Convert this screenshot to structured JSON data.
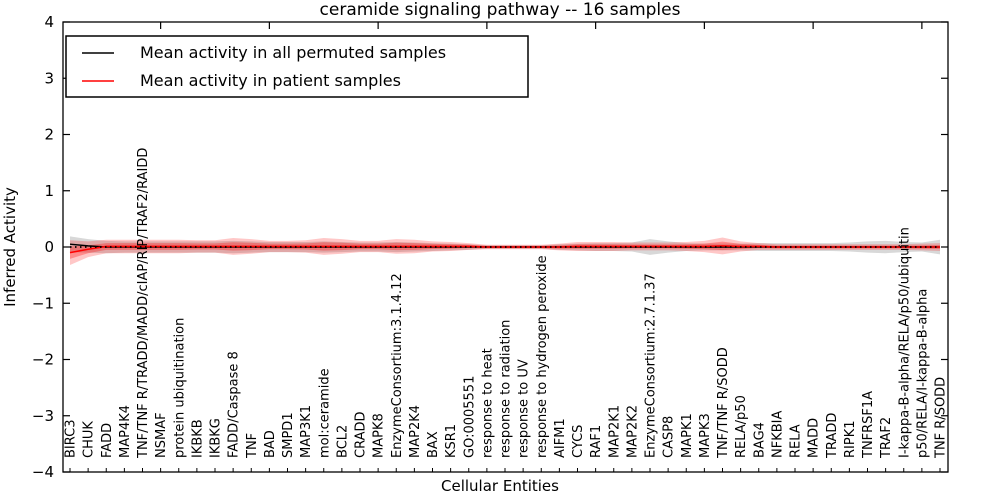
{
  "chart_data": {
    "type": "line",
    "title": "ceramide signaling pathway -- 16 samples",
    "xlabel": "Cellular Entities",
    "ylabel": "Inferred Activity",
    "ylim": [
      -4,
      4
    ],
    "yticks": [
      4,
      3,
      2,
      1,
      0,
      -1,
      -2,
      -3,
      -4
    ],
    "grid": false,
    "legend_position": "upper left",
    "top_tick_indices": [
      5,
      11,
      17,
      23,
      29,
      35,
      41,
      47
    ],
    "categories": [
      "BIRC3",
      "CHUK",
      "FADD",
      "MAP4K4",
      "TNF/TNF R/TRADD/MADD/cIAP/RIP/TRAF2/RAIDD",
      "NSMAF",
      "protein ubiquitination",
      "IKBKB",
      "IKBKG",
      "FADD/Caspase 8",
      "TNF",
      "BAD",
      "SMPD1",
      "MAP3K1",
      "mol:ceramide",
      "BCL2",
      "CRADD",
      "MAPK8",
      "EnzymeConsortium:3.1.4.12",
      "MAP2K4",
      "BAX",
      "KSR1",
      "GO:0005551",
      "response to heat",
      "response to radiation",
      "response to UV",
      "response to hydrogen peroxide",
      "AIFM1",
      "CYCS",
      "RAF1",
      "MAP2K1",
      "MAP2K2",
      "EnzymeConsortium:2.7.1.37",
      "CASP8",
      "MAPK1",
      "MAPK3",
      "TNF/TNF R/SODD",
      "RELA/p50",
      "BAG4",
      "NFKBIA",
      "RELA",
      "MADD",
      "TRADD",
      "RIPK1",
      "TNFRSF1A",
      "TRAF2",
      "I-kappa-B-alpha/RELA/p50/ubiquitin",
      "p50/RELA/I-kappa-B-alpha",
      "TNF R/SODD"
    ],
    "series": [
      {
        "name": "Mean activity in all permuted samples",
        "color": "#000000",
        "band_color": "#999999",
        "values": [
          0.05,
          0.02,
          0,
          0,
          0,
          0,
          0,
          0,
          0,
          0,
          0,
          0,
          0,
          0,
          0,
          0,
          0,
          0,
          0,
          0,
          0,
          0,
          0,
          0,
          0,
          0,
          0,
          0,
          0,
          0,
          0,
          0,
          0,
          0,
          0,
          0,
          0,
          0,
          0,
          0,
          0,
          0,
          0,
          0,
          0,
          0,
          0,
          0,
          0
        ],
        "band": [
          0.14,
          0.12,
          0.11,
          0.1,
          0.1,
          0.1,
          0.1,
          0.1,
          0.1,
          0.11,
          0.1,
          0.09,
          0.09,
          0.09,
          0.1,
          0.09,
          0.08,
          0.08,
          0.09,
          0.08,
          0.07,
          0.06,
          0.05,
          0.03,
          0.03,
          0.03,
          0.03,
          0.05,
          0.06,
          0.07,
          0.07,
          0.08,
          0.14,
          0.1,
          0.07,
          0.06,
          0.06,
          0.06,
          0.07,
          0.07,
          0.07,
          0.07,
          0.07,
          0.08,
          0.1,
          0.11,
          0.09,
          0.08,
          0.13
        ]
      },
      {
        "name": "Mean activity in patient samples",
        "color": "#ff0000",
        "band_color": "#ff0000",
        "values": [
          -0.1,
          -0.04,
          0.01,
          0.01,
          0.01,
          0.01,
          0.01,
          0.01,
          0.01,
          0.01,
          0.01,
          0.01,
          0.01,
          0.01,
          0.01,
          0.01,
          0.01,
          0.01,
          0.01,
          0.01,
          0.01,
          0.01,
          0.01,
          0,
          0,
          0,
          0,
          0,
          0.01,
          0.01,
          0.01,
          0.01,
          0.01,
          0.01,
          0.01,
          0.01,
          0.02,
          0.01,
          0.01,
          0,
          0,
          0,
          0,
          0,
          0,
          0,
          0,
          0,
          0
        ],
        "band": [
          0.22,
          0.14,
          0.12,
          0.12,
          0.12,
          0.12,
          0.12,
          0.11,
          0.11,
          0.15,
          0.13,
          0.1,
          0.1,
          0.11,
          0.15,
          0.13,
          0.1,
          0.1,
          0.13,
          0.12,
          0.09,
          0.08,
          0.06,
          0.04,
          0.04,
          0.04,
          0.04,
          0.06,
          0.08,
          0.08,
          0.08,
          0.07,
          0.07,
          0.07,
          0.08,
          0.1,
          0.15,
          0.09,
          0.06,
          0.05,
          0.05,
          0.05,
          0.05,
          0.05,
          0.05,
          0.05,
          0.05,
          0.06,
          0.07
        ]
      }
    ]
  }
}
